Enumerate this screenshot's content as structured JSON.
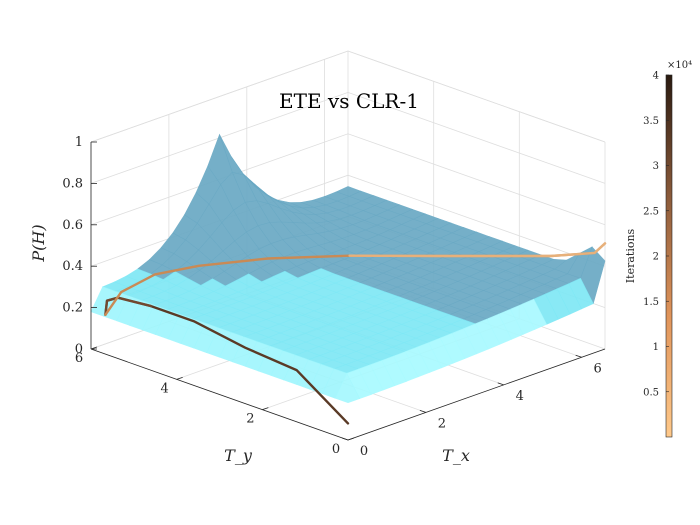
{
  "chart_data": {
    "type": "surface3d",
    "title": "ETE vs CLR-1",
    "xlabel": "T_x",
    "ylabel": "T_y",
    "zlabel": "P(H)",
    "xlim": [
      0,
      6.6
    ],
    "ylim": [
      0,
      6
    ],
    "zlim": [
      0,
      1
    ],
    "x_ticks": [
      "0",
      "2",
      "4",
      "6"
    ],
    "y_ticks": [
      "0",
      "2",
      "4",
      "6"
    ],
    "z_ticks": [
      "0",
      "0.2",
      "0.4",
      "0.6",
      "0.8",
      "1"
    ],
    "surface_color": "#7fe8f5",
    "surface_dark_color": "#6aa9c4",
    "grid": true,
    "colorbar": {
      "label": "Iterations",
      "exponent": "×10⁴",
      "range": [
        0,
        4
      ],
      "ticks": [
        "0.5",
        "1",
        "1.5",
        "2",
        "2.5",
        "3",
        "3.5",
        "4"
      ],
      "colors": [
        "#ffc98a",
        "#e0945a",
        "#8a5a3a",
        "#2a1a10"
      ]
    },
    "series": [
      {
        "points": [
          [
            0,
            0,
            0.08
          ],
          [
            0,
            1.2,
            0.25
          ],
          [
            0,
            2.4,
            0.27
          ],
          [
            0,
            3.6,
            0.31
          ],
          [
            0,
            4.6,
            0.31
          ],
          [
            0.03,
            5.4,
            0.29
          ],
          [
            0.08,
            5.7,
            0.25
          ],
          [
            0.15,
            5.8,
            0.17
          ]
        ],
        "color_range": [
          "#5a3a26",
          "#7a4f33"
        ]
      },
      {
        "points": [
          [
            0.15,
            5.8,
            0.17
          ],
          [
            0.5,
            5.75,
            0.26
          ],
          [
            1.2,
            5.6,
            0.31
          ],
          [
            2,
            5.3,
            0.32
          ],
          [
            3,
            4.6,
            0.34
          ],
          [
            4,
            3.6,
            0.36
          ],
          [
            5,
            2.4,
            0.38
          ],
          [
            6.2,
            0.9,
            0.41
          ],
          [
            6.5,
            0.15,
            0.46
          ],
          [
            6.6,
            0,
            0.51
          ]
        ],
        "color_range": [
          "#c98a55",
          "#f4c08a"
        ]
      }
    ]
  }
}
